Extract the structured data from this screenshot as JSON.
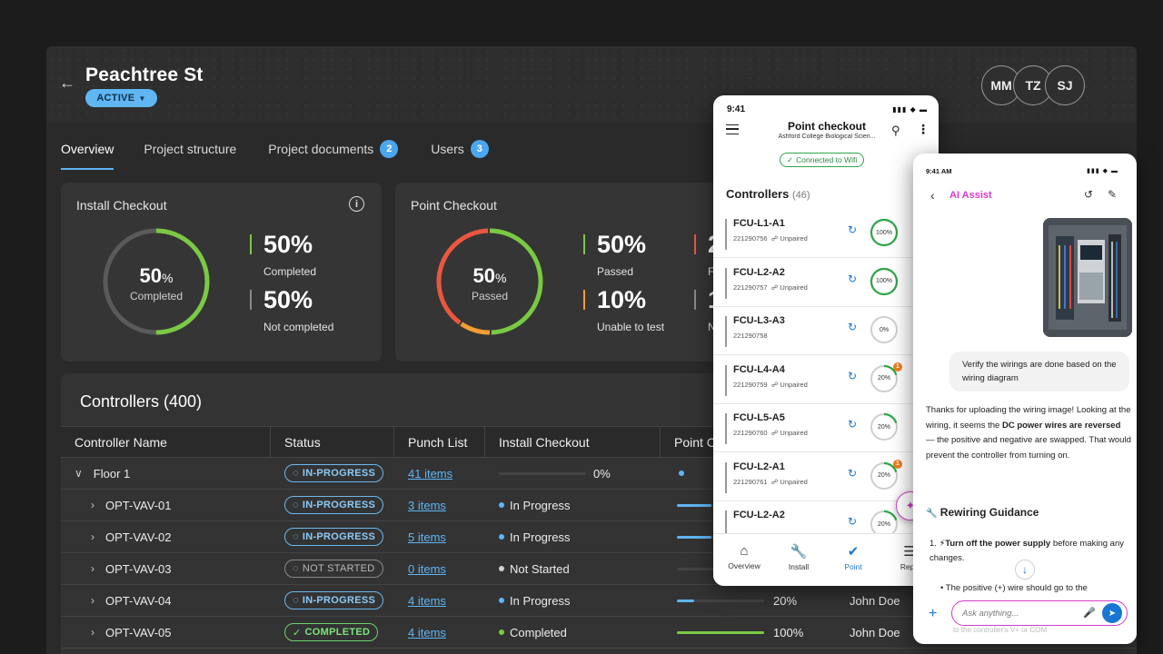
{
  "header": {
    "title": "Peachtree St",
    "status": "ACTIVE",
    "avatars": [
      "MM",
      "TZ",
      "SJ"
    ]
  },
  "tabs": [
    {
      "label": "Overview",
      "badge": ""
    },
    {
      "label": "Project structure",
      "badge": ""
    },
    {
      "label": "Project documents",
      "badge": "2"
    },
    {
      "label": "Users",
      "badge": "3"
    }
  ],
  "install_checkout": {
    "title": "Install Checkout",
    "donut_pct": "50",
    "donut_pct_suffix": "%",
    "donut_label": "Completed",
    "donut_fraction": 0.5,
    "stats": [
      {
        "value": "50%",
        "label": "Completed",
        "color": "#7ac943"
      },
      {
        "value": "50%",
        "label": "Not completed",
        "color": "#8a8a8a"
      }
    ]
  },
  "point_checkout": {
    "title": "Point Checkout",
    "donut_pct": "50",
    "donut_pct_suffix": "%",
    "donut_label": "Passed",
    "donut_segments": [
      {
        "fraction": 0.5,
        "color": "#7ac943"
      },
      {
        "fraction": 0.1,
        "color": "#f39c33"
      },
      {
        "fraction": 0.4,
        "color": "#e9573f"
      }
    ],
    "stats": [
      {
        "value": "50%",
        "label": "Passed",
        "color": "#7ac943"
      },
      {
        "value": "10%",
        "label": "Unable to test",
        "color": "#f39c33"
      },
      {
        "value": "2",
        "label": "F",
        "color": "#e9573f"
      },
      {
        "value": "1",
        "label": "N",
        "color": "#8a8a8a"
      }
    ]
  },
  "controllers_table": {
    "title": "Controllers (400)",
    "columns": [
      "Controller Name",
      "Status",
      "Punch List",
      "Install Checkout",
      "Point C"
    ],
    "group": {
      "name": "Floor 1",
      "status": "IN-PROGRESS",
      "punch": "41 items",
      "install_label": "",
      "install_pct": "0%",
      "install_fraction": 0.0
    },
    "rows": [
      {
        "name": "OPT-VAV-01",
        "status": "IN-PROGRESS",
        "status_kind": "prog",
        "punch": "3 items",
        "install": "In Progress",
        "install_color": "#5fb6f3",
        "point_fraction": 0.4,
        "point_pct": "",
        "owner": ""
      },
      {
        "name": "OPT-VAV-02",
        "status": "IN-PROGRESS",
        "status_kind": "prog",
        "punch": "5 items",
        "install": "In Progress",
        "install_color": "#5fb6f3",
        "point_fraction": 0.4,
        "point_pct": "",
        "owner": ""
      },
      {
        "name": "OPT-VAV-03",
        "status": "NOT STARTED",
        "status_kind": "not",
        "punch": "0 items",
        "install": "Not Started",
        "install_color": "#cfcfcf",
        "point_fraction": 0.0,
        "point_pct": "",
        "owner": ""
      },
      {
        "name": "OPT-VAV-04",
        "status": "IN-PROGRESS",
        "status_kind": "prog",
        "punch": "4 items",
        "install": "In Progress",
        "install_color": "#5fb6f3",
        "point_fraction": 0.2,
        "point_pct": "20%",
        "owner": "John Doe"
      },
      {
        "name": "OPT-VAV-05",
        "status": "COMPLETED",
        "status_kind": "done",
        "punch": "4 items",
        "install": "Completed",
        "install_color": "#7ac943",
        "point_fraction": 1.0,
        "point_pct": "100%",
        "owner": "John Doe"
      }
    ]
  },
  "phone": {
    "time": "9:41",
    "title": "Point checkout",
    "subtitle": "Ashford College Biological Scien...",
    "wifi": "Connected to Wifi",
    "list_title": "Controllers",
    "list_count": "(46)",
    "items": [
      {
        "name": "FCU-L1-A1",
        "id": "221290756",
        "pair": "Unpaired",
        "pct": "100%",
        "fraction": 1.0,
        "warn": ""
      },
      {
        "name": "FCU-L2-A2",
        "id": "221290757",
        "pair": "Unpaired",
        "pct": "100%",
        "fraction": 1.0,
        "warn": ""
      },
      {
        "name": "FCU-L3-A3",
        "id": "221290758",
        "pair": "",
        "pct": "0%",
        "fraction": 0.0,
        "warn": ""
      },
      {
        "name": "FCU-L4-A4",
        "id": "221290759",
        "pair": "Unpaired",
        "pct": "20%",
        "fraction": 0.2,
        "warn": "1"
      },
      {
        "name": "FCU-L5-A5",
        "id": "221290760",
        "pair": "Unpaired",
        "pct": "20%",
        "fraction": 0.2,
        "warn": ""
      },
      {
        "name": "FCU-L2-A1",
        "id": "221290761",
        "pair": "Unpaired",
        "pct": "20%",
        "fraction": 0.2,
        "warn": "1"
      },
      {
        "name": "FCU-L2-A2",
        "id": "",
        "pair": "",
        "pct": "20%",
        "fraction": 0.2,
        "warn": ""
      }
    ],
    "nav": [
      "Overview",
      "Install",
      "Point",
      "Repo"
    ]
  },
  "ai_assist": {
    "time": "9:41 AM",
    "title": "AI Assist",
    "user_message": "Verify the wirings are done based on the wiring diagram",
    "reply_part1": "Thanks for uploading the wiring image! Looking at the wiring, it seems the ",
    "reply_bold": "DC power wires are reversed",
    "reply_part2": " — the positive and negative are swapped. That would prevent the controller from turning on.",
    "heading": "Rewiring Guidance",
    "step1_num": "1.",
    "step1_bold": "Turn off the power supply",
    "step1_rest": " before making any changes.",
    "bullet": "The positive (+) wire should go to the",
    "faded": "to the controller's V+ or COM",
    "input_placeholder": "Ask anything..."
  },
  "colors": {
    "accent": "#5fb6f3",
    "green": "#7ac943",
    "orange": "#f39c33",
    "red": "#e9573f",
    "ai_magenta": "#d63cc8",
    "mobile_blue": "#1976d2"
  }
}
